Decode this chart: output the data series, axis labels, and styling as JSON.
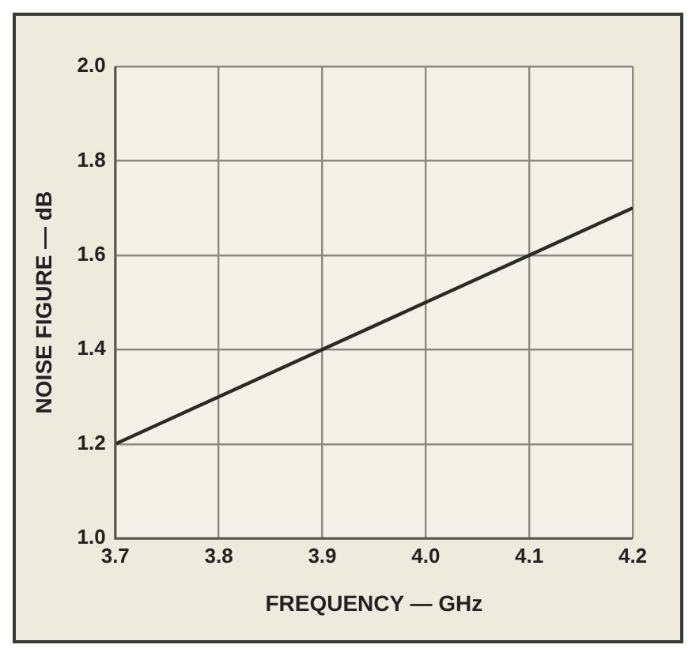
{
  "chart_data": {
    "type": "line",
    "xlabel": "FREQUENCY — GHz",
    "ylabel": "NOISE FIGURE — dB",
    "x": [
      3.7,
      3.8,
      3.9,
      4.0,
      4.1,
      4.2
    ],
    "series": [
      {
        "color": "#2a2a26",
        "values": [
          1.2,
          1.3,
          1.4,
          1.5,
          1.6,
          1.7
        ]
      }
    ],
    "xlim": [
      3.7,
      4.2
    ],
    "xticks": [
      {
        "value": 3.7,
        "label": "3.7"
      },
      {
        "value": 3.8,
        "label": "3.8"
      },
      {
        "value": 3.9,
        "label": "3.9"
      },
      {
        "value": 4.0,
        "label": "4.0"
      },
      {
        "value": 4.1,
        "label": "4.1"
      },
      {
        "value": 4.2,
        "label": "4.2"
      }
    ],
    "ylim": [
      1.0,
      2.0
    ],
    "yticks": [
      {
        "value": 1.0,
        "label": "1.0"
      },
      {
        "value": 1.2,
        "label": "1.2"
      },
      {
        "value": 1.4,
        "label": "1.4"
      },
      {
        "value": 1.6,
        "label": "1.6"
      },
      {
        "value": 1.8,
        "label": "1.8"
      },
      {
        "value": 2.0,
        "label": "2.0"
      }
    ],
    "grid": true,
    "legend": false,
    "marker": "none",
    "line_style": "solid"
  }
}
